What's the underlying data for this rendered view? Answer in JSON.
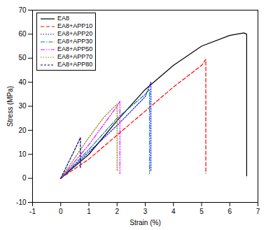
{
  "chart_data": {
    "type": "line",
    "x_label": "Strain (%)",
    "y_label": "Stress (MPa)",
    "xlim": [
      -1,
      7
    ],
    "xticks": [
      -1,
      0,
      1,
      2,
      3,
      4,
      5,
      6,
      7
    ],
    "ylim": [
      -10,
      70
    ],
    "yticks": [
      -10,
      0,
      10,
      20,
      30,
      40,
      50,
      60,
      70
    ],
    "grid": false,
    "legend": "top-left",
    "series": [
      {
        "name": "EA8",
        "color": "#000000",
        "line_style": "solid",
        "x": [
          0,
          1,
          2,
          3,
          4,
          5,
          6,
          6.5,
          6.6,
          6.6
        ],
        "values": [
          0,
          10,
          24,
          37,
          47,
          55,
          59.5,
          60.5,
          60,
          1
        ]
      },
      {
        "name": "EA8+APP10",
        "color": "#ff0000",
        "line_style": "dashed",
        "x": [
          0,
          1,
          2,
          3,
          4,
          5,
          5.15,
          5.15
        ],
        "values": [
          0,
          8,
          18,
          28,
          38,
          47,
          49.5,
          2
        ]
      },
      {
        "name": "EA8+APP20",
        "color": "#0000ff",
        "line_style": "dotted",
        "x": [
          0,
          1,
          2,
          3,
          3.2,
          3.2
        ],
        "values": [
          0,
          11,
          22,
          34,
          40,
          3
        ]
      },
      {
        "name": "EA8+APP30",
        "color": "#008080",
        "line_style": "dashdot",
        "x": [
          0,
          1,
          2,
          3,
          3.15,
          3.15
        ],
        "values": [
          0,
          12,
          25,
          35,
          37,
          2
        ]
      },
      {
        "name": "EA8+APP50",
        "color": "#ff00ff",
        "line_style": "dashdotdot",
        "x": [
          0,
          1,
          2,
          2.1,
          2.1
        ],
        "values": [
          0,
          14,
          30,
          32,
          2
        ]
      },
      {
        "name": "EA8+APP70",
        "color": "#808000",
        "line_style": "dotted",
        "x": [
          0,
          1,
          1.5,
          2,
          2
        ],
        "values": [
          0,
          17,
          25,
          31,
          3
        ]
      },
      {
        "name": "EA8+APP80",
        "color": "#000080",
        "line_style": "shortdash",
        "x": [
          0,
          0.5,
          0.7,
          0.7
        ],
        "values": [
          0,
          12,
          17,
          4
        ]
      }
    ]
  }
}
